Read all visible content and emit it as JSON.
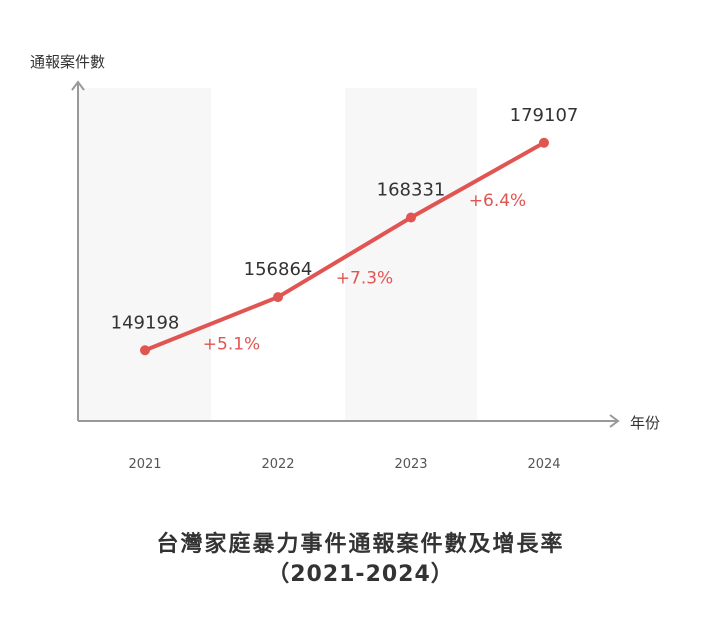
{
  "chart_data": {
    "type": "line",
    "title": "台灣家庭暴力事件通報案件數及增長率",
    "subtitle": "（2021-2024）",
    "xlabel": "年份",
    "ylabel": "通報案件數",
    "categories": [
      "2021",
      "2022",
      "2023",
      "2024"
    ],
    "series": [
      {
        "values": [
          149198,
          156864,
          168331,
          179107
        ]
      }
    ],
    "growth_labels": [
      "+5.1%",
      "+7.3%",
      "+6.4%"
    ],
    "ylim": [
      139000,
      187000
    ],
    "shaded_bands": [
      "2021",
      "2023"
    ],
    "grid": false,
    "legend": "none",
    "colors": {
      "line": "#e05552",
      "growth_text": "#e05552",
      "value_text": "#333333",
      "axis": "#999999",
      "band": "#f7f7f7"
    }
  }
}
